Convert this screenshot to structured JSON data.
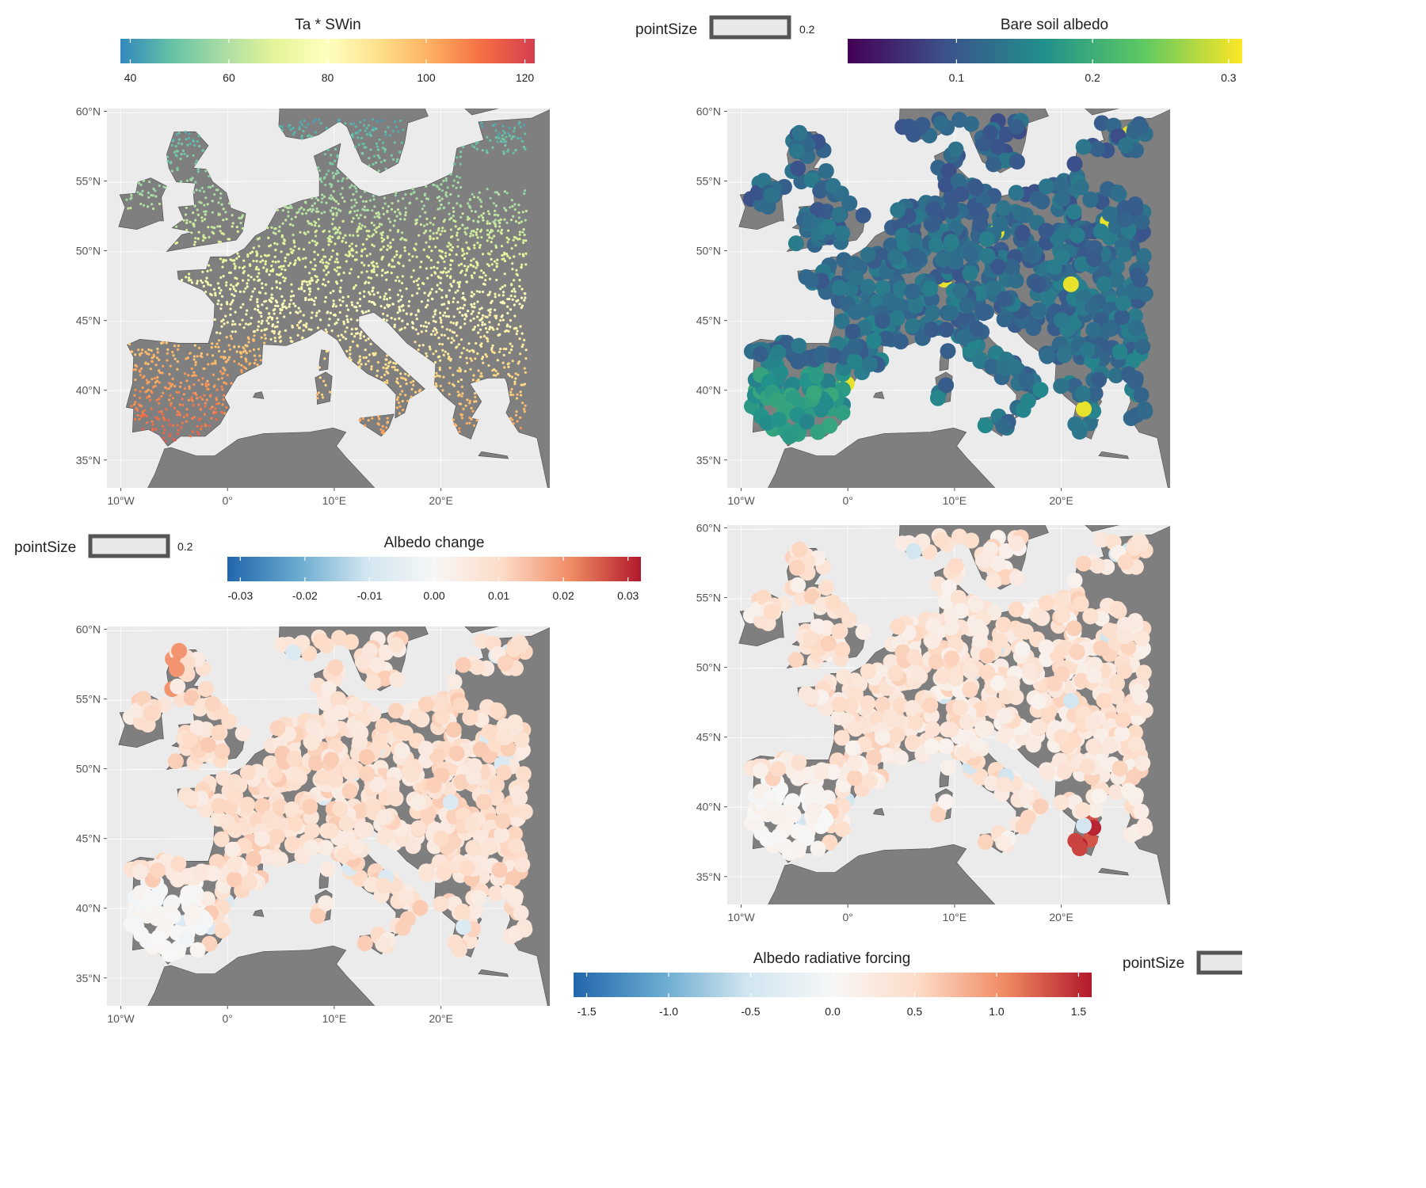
{
  "colors": {
    "ocean": "#ebebeb",
    "land": "#7f7f7f",
    "coast": "#4d4d4d"
  },
  "panels": [
    {
      "id": "ta-swin",
      "legend": {
        "title": "Ta * SWin",
        "ticks": [
          "40",
          "60",
          "80",
          "100",
          "120"
        ],
        "tick_values": [
          40,
          60,
          80,
          100,
          120
        ],
        "range": [
          38,
          122
        ],
        "colors": [
          "#3288bd",
          "#66c2a5",
          "#abdda4",
          "#e6f598",
          "#ffffbf",
          "#fee08b",
          "#fdae61",
          "#f46d43",
          "#d53e4f"
        ]
      },
      "lat_labels": [
        "60°N",
        "55°N",
        "50°N",
        "45°N",
        "40°N",
        "35°N"
      ],
      "lon_labels": [
        "10°W",
        "0°",
        "10°E",
        "20°E"
      ],
      "point_style": "small"
    },
    {
      "id": "bare-soil-albedo",
      "legend": {
        "title": "Bare soil albedo",
        "ticks": [
          "0.1",
          "0.2",
          "0.3"
        ],
        "tick_values": [
          0.1,
          0.2,
          0.3
        ],
        "range": [
          0.02,
          0.31
        ],
        "colors": [
          "#440154",
          "#3b528b",
          "#21918c",
          "#5ec962",
          "#fde725"
        ]
      },
      "point_size_legend": {
        "title": "pointSize",
        "value": "0.2"
      },
      "lat_labels": [
        "60°N",
        "55°N",
        "50°N",
        "45°N",
        "40°N",
        "35°N"
      ],
      "lon_labels": [
        "10°W",
        "0°",
        "10°E",
        "20°E"
      ],
      "point_style": "large"
    },
    {
      "id": "albedo-change",
      "legend": {
        "title": "Albedo change",
        "ticks": [
          "-0.03",
          "-0.02",
          "-0.01",
          "0.00",
          "0.01",
          "0.02",
          "0.03"
        ],
        "tick_values": [
          -0.03,
          -0.02,
          -0.01,
          0,
          0.01,
          0.02,
          0.03
        ],
        "range": [
          -0.032,
          0.032
        ],
        "colors": [
          "#2166ac",
          "#67a9cf",
          "#d1e5f0",
          "#f7f7f7",
          "#fddbc7",
          "#ef8a62",
          "#b2182b"
        ]
      },
      "point_size_legend": {
        "title": "pointSize",
        "value": "0.2"
      },
      "lat_labels": [
        "60°N",
        "55°N",
        "50°N",
        "45°N",
        "40°N",
        "35°N"
      ],
      "lon_labels": [
        "10°W",
        "0°",
        "10°E",
        "20°E"
      ],
      "point_style": "large"
    },
    {
      "id": "albedo-radiative-forcing",
      "legend": {
        "title": "Albedo radiative forcing",
        "ticks": [
          "-1.5",
          "-1.0",
          "-0.5",
          "0.0",
          "0.5",
          "1.0",
          "1.5"
        ],
        "tick_values": [
          -1.5,
          -1,
          -0.5,
          0,
          0.5,
          1,
          1.5
        ],
        "range": [
          -1.58,
          1.58
        ],
        "colors": [
          "#2166ac",
          "#67a9cf",
          "#d1e5f0",
          "#f7f7f7",
          "#fddbc7",
          "#ef8a62",
          "#b2182b"
        ]
      },
      "point_size_legend": {
        "title": "pointSize",
        "value": ""
      },
      "lat_labels": [
        "60°N",
        "55°N",
        "50°N",
        "45°N",
        "40°N",
        "35°N"
      ],
      "lon_labels": [
        "10°W",
        "0°",
        "10°E",
        "20°E"
      ],
      "point_style": "large"
    }
  ]
}
